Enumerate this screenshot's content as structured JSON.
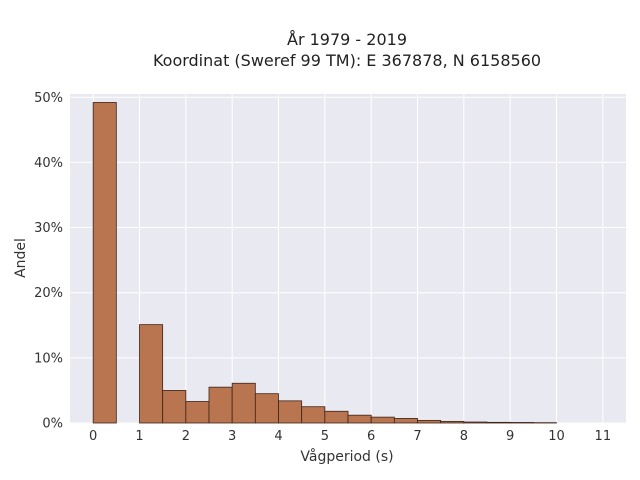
{
  "chart_data": {
    "type": "bar",
    "title_lines": [
      "År 1979 - 2019",
      "Koordinat (Sweref 99 TM): E 367878, N 6158560"
    ],
    "xlabel": "Vågperiod (s)",
    "ylabel": "Andel",
    "xlim": [
      -0.5,
      11.5
    ],
    "ylim": [
      0,
      50.5
    ],
    "xticks": [
      0,
      1,
      2,
      3,
      4,
      5,
      6,
      7,
      8,
      9,
      10,
      11
    ],
    "xtick_labels": [
      "0",
      "1",
      "2",
      "3",
      "4",
      "5",
      "6",
      "7",
      "8",
      "9",
      "10",
      "11"
    ],
    "yticks": [
      0,
      10,
      20,
      30,
      40,
      50
    ],
    "ytick_labels": [
      "0%",
      "10%",
      "20%",
      "30%",
      "40%",
      "50%"
    ],
    "grid": true,
    "bin_width": 0.5,
    "bins": [
      {
        "x0": 0.0,
        "value": 49.2
      },
      {
        "x0": 1.0,
        "value": 15.1
      },
      {
        "x0": 1.5,
        "value": 5.0
      },
      {
        "x0": 2.0,
        "value": 3.3
      },
      {
        "x0": 2.5,
        "value": 5.5
      },
      {
        "x0": 3.0,
        "value": 6.1
      },
      {
        "x0": 3.5,
        "value": 4.5
      },
      {
        "x0": 4.0,
        "value": 3.4
      },
      {
        "x0": 4.5,
        "value": 2.5
      },
      {
        "x0": 5.0,
        "value": 1.8
      },
      {
        "x0": 5.5,
        "value": 1.2
      },
      {
        "x0": 6.0,
        "value": 0.9
      },
      {
        "x0": 6.5,
        "value": 0.7
      },
      {
        "x0": 7.0,
        "value": 0.4
      },
      {
        "x0": 7.5,
        "value": 0.25
      },
      {
        "x0": 8.0,
        "value": 0.15
      },
      {
        "x0": 8.5,
        "value": 0.1
      },
      {
        "x0": 9.0,
        "value": 0.08
      },
      {
        "x0": 9.5,
        "value": 0.05
      }
    ],
    "colors": {
      "bar_fill": "#b9754f",
      "bar_stroke": "#3d2418",
      "plot_background": "#e9e9f1",
      "grid": "#ffffff"
    }
  }
}
